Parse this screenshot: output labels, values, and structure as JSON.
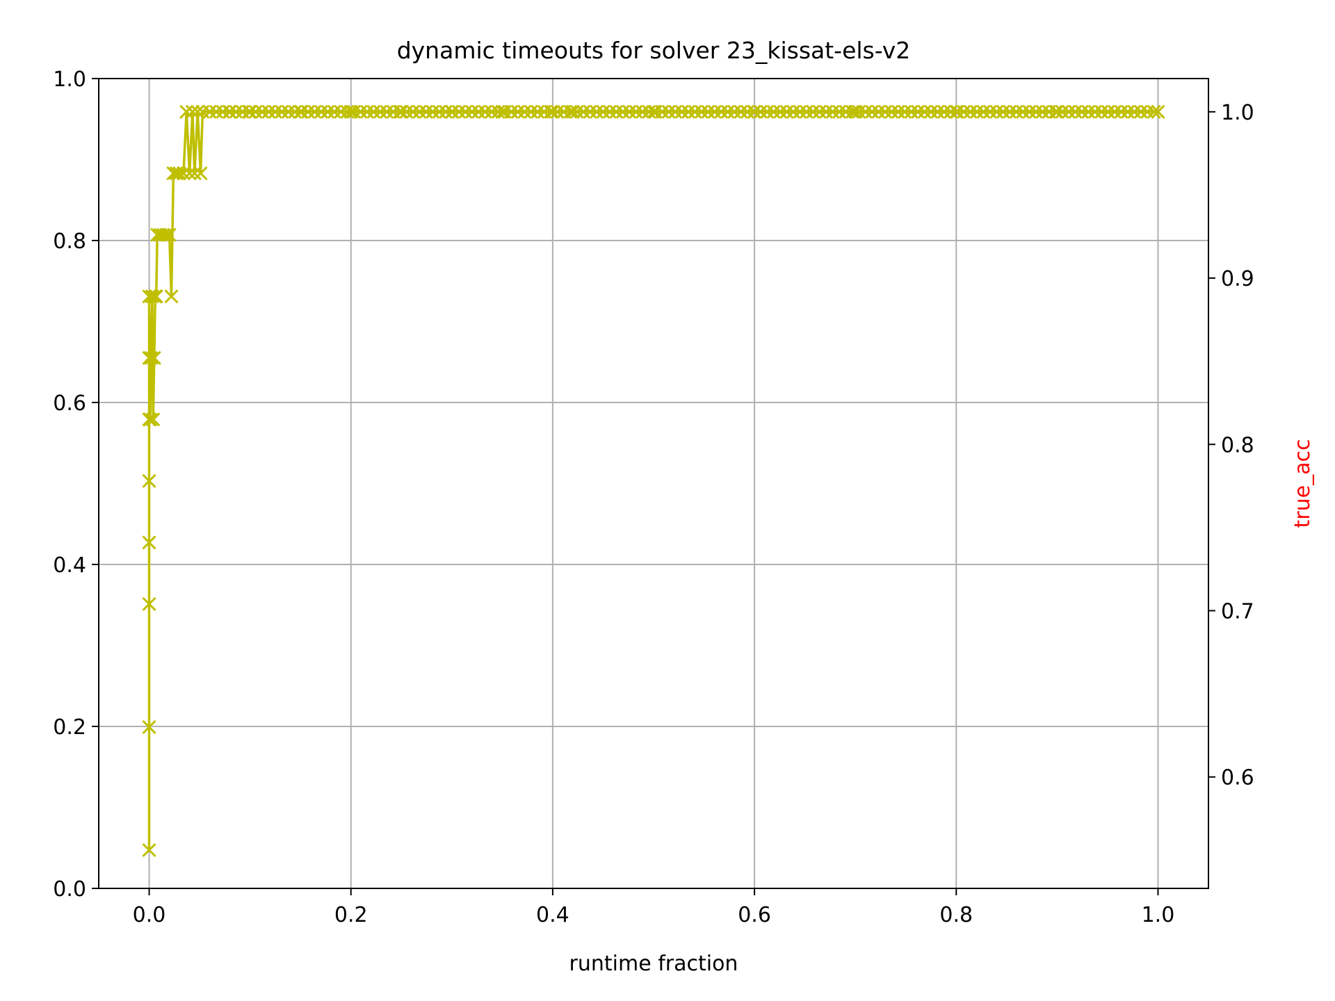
{
  "chart_data": {
    "type": "line",
    "title": "dynamic timeouts for solver 23_kissat-els-v2",
    "xlabel": "runtime fraction",
    "ylabel": "",
    "y2label": "true_acc",
    "xlim": [
      -0.05,
      1.05
    ],
    "ylim": [
      0.0,
      1.0
    ],
    "y2lim": [
      0.533,
      1.02
    ],
    "xticks": [
      0.0,
      0.2,
      0.4,
      0.6,
      0.8,
      1.0
    ],
    "xtick_labels": [
      "0.0",
      "0.2",
      "0.4",
      "0.6",
      "0.8",
      "1.0"
    ],
    "yticks": [
      0.0,
      0.2,
      0.4,
      0.6,
      0.8,
      1.0
    ],
    "ytick_labels": [
      "0.0",
      "0.2",
      "0.4",
      "0.6",
      "0.8",
      "1.0"
    ],
    "y2ticks": [
      0.6,
      0.7,
      0.8,
      0.9,
      1.0
    ],
    "y2tick_labels": [
      "0.6",
      "0.7",
      "0.8",
      "0.9",
      "1.0"
    ],
    "grid": true,
    "series": [
      {
        "name": "",
        "color": "#bfbf00",
        "marker": "x",
        "axis": "right",
        "points": [
          [
            0.0,
            0.556
          ],
          [
            0.0,
            0.63
          ],
          [
            0.0,
            0.704
          ],
          [
            0.0,
            0.741
          ],
          [
            0.0,
            0.778
          ],
          [
            0.0,
            0.815
          ],
          [
            0.0,
            0.852
          ],
          [
            0.0,
            0.889
          ],
          [
            0.001,
            0.815
          ],
          [
            0.002,
            0.852
          ],
          [
            0.003,
            0.889
          ],
          [
            0.004,
            0.815
          ],
          [
            0.005,
            0.852
          ],
          [
            0.006,
            0.889
          ],
          [
            0.007,
            0.889
          ],
          [
            0.008,
            0.926
          ],
          [
            0.011,
            0.926
          ],
          [
            0.014,
            0.926
          ],
          [
            0.017,
            0.926
          ],
          [
            0.02,
            0.926
          ],
          [
            0.022,
            0.889
          ],
          [
            0.024,
            0.963
          ],
          [
            0.027,
            0.963
          ],
          [
            0.03,
            0.963
          ],
          [
            0.034,
            0.963
          ],
          [
            0.037,
            1.0
          ],
          [
            0.04,
            0.963
          ],
          [
            0.043,
            1.0
          ],
          [
            0.045,
            0.963
          ],
          [
            0.048,
            1.0
          ],
          [
            0.051,
            0.963
          ],
          [
            0.053,
            1.0
          ],
          [
            0.06,
            1.0
          ],
          [
            0.08,
            1.0
          ],
          [
            0.1,
            1.0
          ],
          [
            0.15,
            1.0
          ],
          [
            0.2,
            1.0
          ],
          [
            0.25,
            1.0
          ],
          [
            0.3,
            1.0
          ],
          [
            0.35,
            1.0
          ],
          [
            0.4,
            1.0
          ],
          [
            0.42,
            1.0
          ],
          [
            0.5,
            1.0
          ],
          [
            0.6,
            1.0
          ],
          [
            0.7,
            1.0
          ],
          [
            0.8,
            1.0
          ],
          [
            0.9,
            1.0
          ],
          [
            1.0,
            1.0
          ]
        ]
      }
    ]
  }
}
